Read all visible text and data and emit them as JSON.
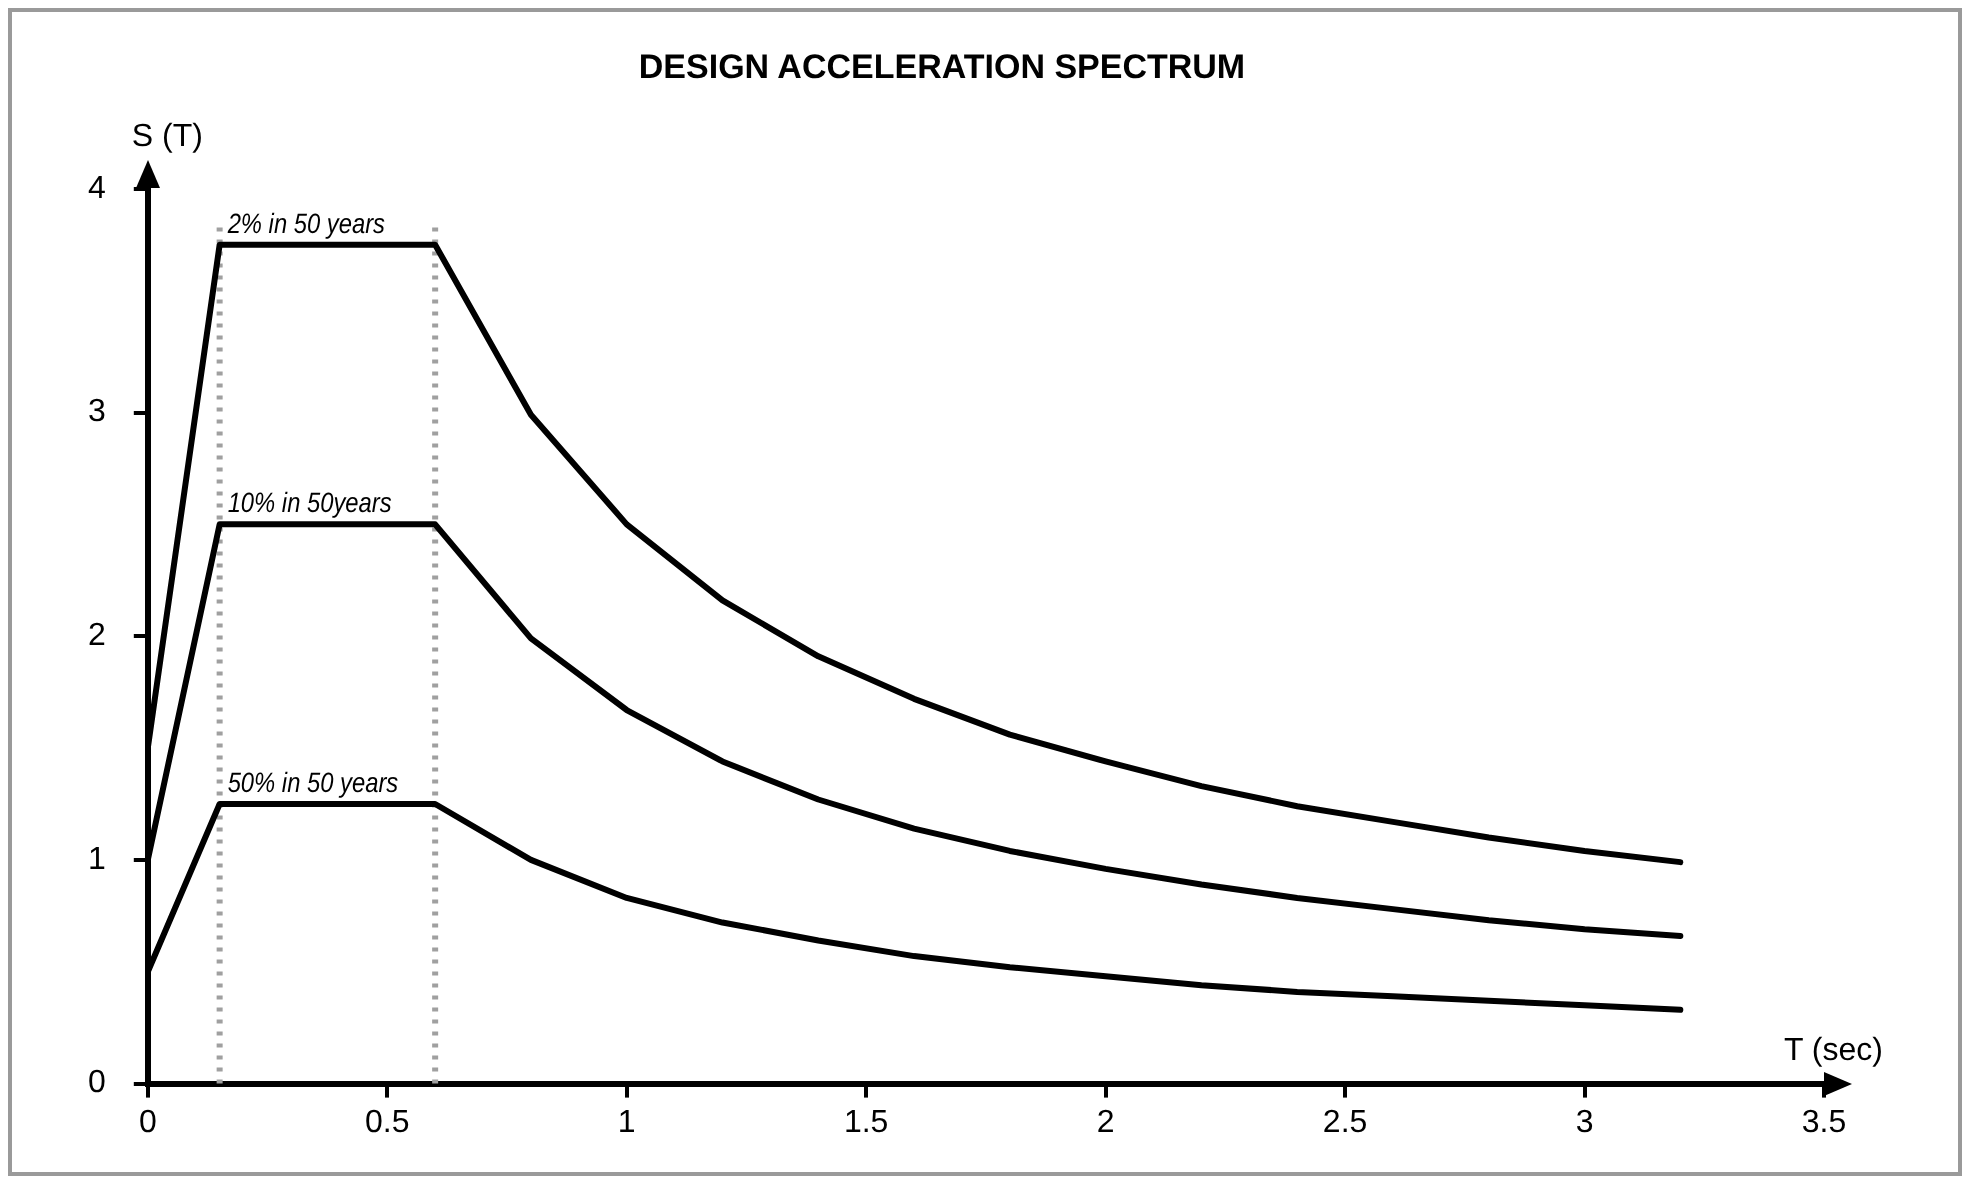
{
  "chart_data": {
    "type": "line",
    "title": "DESIGN ACCELERATION SPECTRUM",
    "xlabel": "T (sec)",
    "ylabel": "S (T)",
    "series": [
      {
        "name": "2% in 50 years",
        "color": "#000000",
        "x": [
          0,
          0.15,
          0.6,
          0.8,
          1.0,
          1.2,
          1.4,
          1.6,
          1.8,
          2.0,
          2.2,
          2.4,
          2.6,
          2.8,
          3.0,
          3.2
        ],
        "values": [
          1.5,
          3.75,
          3.75,
          2.99,
          2.5,
          2.16,
          1.91,
          1.72,
          1.56,
          1.44,
          1.33,
          1.24,
          1.17,
          1.1,
          1.04,
          0.99
        ]
      },
      {
        "name": "10% in 50years",
        "color": "#000000",
        "x": [
          0,
          0.15,
          0.6,
          0.8,
          1.0,
          1.2,
          1.4,
          1.6,
          1.8,
          2.0,
          2.2,
          2.4,
          2.6,
          2.8,
          3.0,
          3.2
        ],
        "values": [
          1.0,
          2.5,
          2.5,
          1.99,
          1.67,
          1.44,
          1.27,
          1.14,
          1.04,
          0.96,
          0.89,
          0.83,
          0.78,
          0.73,
          0.69,
          0.66
        ]
      },
      {
        "name": "50% in 50 years",
        "color": "#000000",
        "x": [
          0,
          0.15,
          0.6,
          0.8,
          1.0,
          1.2,
          1.4,
          1.6,
          1.8,
          2.0,
          2.2,
          2.4,
          2.6,
          2.8,
          3.0,
          3.2
        ],
        "values": [
          0.5,
          1.25,
          1.25,
          1.0,
          0.83,
          0.72,
          0.64,
          0.57,
          0.52,
          0.48,
          0.44,
          0.41,
          0.39,
          0.37,
          0.35,
          0.33
        ]
      }
    ],
    "xlim": [
      0,
      3.5
    ],
    "xticks": [
      0,
      0.5,
      1,
      1.5,
      2,
      2.5,
      3,
      3.5
    ],
    "ylim": [
      0,
      4
    ],
    "yticks": [
      0,
      1,
      2,
      3,
      4
    ],
    "ref_lines": [
      {
        "axis": "x",
        "value": 0.15,
        "color": "#a0a0a0",
        "line_style": "dotted"
      },
      {
        "axis": "x",
        "value": 0.6,
        "color": "#a0a0a0",
        "line_style": "dotted"
      }
    ],
    "grid": false,
    "legend": false,
    "marker": "none",
    "line_style": "solid"
  }
}
